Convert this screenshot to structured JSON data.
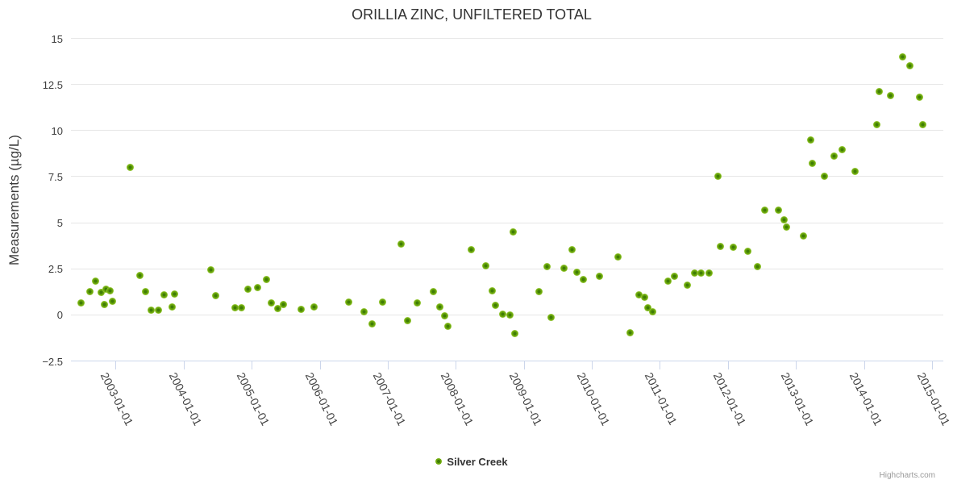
{
  "credits": {
    "label": "Highcharts.com"
  },
  "chart_data": {
    "type": "scatter",
    "title": "ORILLIA ZINC, UNFILTERED TOTAL",
    "xlabel": "",
    "ylabel": "Measurements (µg/L)",
    "grid": true,
    "legend_position": "bottom-center",
    "ylim": [
      -2.5,
      15
    ],
    "y_ticks": [
      {
        "value": -2.5,
        "label": "−2.5"
      },
      {
        "value": 0,
        "label": "0"
      },
      {
        "value": 2.5,
        "label": "2.5"
      },
      {
        "value": 5,
        "label": "5"
      },
      {
        "value": 7.5,
        "label": "7.5"
      },
      {
        "value": 10,
        "label": "10"
      },
      {
        "value": 12.5,
        "label": "12.5"
      },
      {
        "value": 15,
        "label": "15"
      }
    ],
    "x_ticks": [
      {
        "date": "2003-01-01",
        "label": "2003-01-01"
      },
      {
        "date": "2004-01-01",
        "label": "2004-01-01"
      },
      {
        "date": "2005-01-01",
        "label": "2005-01-01"
      },
      {
        "date": "2006-01-01",
        "label": "2006-01-01"
      },
      {
        "date": "2007-01-01",
        "label": "2007-01-01"
      },
      {
        "date": "2008-01-01",
        "label": "2008-01-01"
      },
      {
        "date": "2009-01-01",
        "label": "2009-01-01"
      },
      {
        "date": "2010-01-01",
        "label": "2010-01-01"
      },
      {
        "date": "2011-01-01",
        "label": "2011-01-01"
      },
      {
        "date": "2012-01-01",
        "label": "2012-01-01"
      },
      {
        "date": "2013-01-01",
        "label": "2013-01-01"
      },
      {
        "date": "2014-01-01",
        "label": "2014-01-01"
      },
      {
        "date": "2015-01-01",
        "label": "2015-01-01"
      }
    ],
    "series": [
      {
        "name": "Silver Creek",
        "color": "#5a9200",
        "points": [
          [
            "2002-07-01",
            0.65
          ],
          [
            "2002-08-15",
            1.25
          ],
          [
            "2002-09-15",
            1.85
          ],
          [
            "2002-10-15",
            1.2
          ],
          [
            "2002-11-01",
            0.55
          ],
          [
            "2002-11-10",
            1.4
          ],
          [
            "2002-12-01",
            1.3
          ],
          [
            "2002-12-15",
            0.75
          ],
          [
            "2003-03-20",
            8.0
          ],
          [
            "2003-05-10",
            2.15
          ],
          [
            "2003-06-10",
            1.25
          ],
          [
            "2003-07-10",
            0.25
          ],
          [
            "2003-08-20",
            0.25
          ],
          [
            "2003-09-20",
            1.1
          ],
          [
            "2003-11-01",
            0.45
          ],
          [
            "2003-11-15",
            1.15
          ],
          [
            "2004-05-25",
            2.45
          ],
          [
            "2004-06-20",
            1.05
          ],
          [
            "2004-10-01",
            0.4
          ],
          [
            "2004-11-05",
            0.4
          ],
          [
            "2004-12-10",
            1.4
          ],
          [
            "2005-02-01",
            1.5
          ],
          [
            "2005-03-20",
            1.9
          ],
          [
            "2005-04-15",
            0.65
          ],
          [
            "2005-05-20",
            0.35
          ],
          [
            "2005-06-20",
            0.55
          ],
          [
            "2005-09-25",
            0.3
          ],
          [
            "2005-11-30",
            0.45
          ],
          [
            "2006-06-07",
            0.7
          ],
          [
            "2006-08-28",
            0.15
          ],
          [
            "2006-10-10",
            -0.5
          ],
          [
            "2006-12-03",
            0.7
          ],
          [
            "2007-03-14",
            3.85
          ],
          [
            "2007-04-18",
            -0.3
          ],
          [
            "2007-06-10",
            0.65
          ],
          [
            "2007-09-03",
            1.25
          ],
          [
            "2007-10-06",
            0.45
          ],
          [
            "2007-11-01",
            -0.05
          ],
          [
            "2007-11-20",
            -0.6
          ],
          [
            "2008-03-24",
            3.55
          ],
          [
            "2008-06-10",
            2.65
          ],
          [
            "2008-07-13",
            1.3
          ],
          [
            "2008-08-03",
            0.5
          ],
          [
            "2008-09-08",
            0.05
          ],
          [
            "2008-10-20",
            0.0
          ],
          [
            "2008-11-03",
            4.5
          ],
          [
            "2008-11-14",
            -1.0
          ],
          [
            "2009-03-23",
            1.25
          ],
          [
            "2009-05-03",
            2.6
          ],
          [
            "2009-05-27",
            -0.15
          ],
          [
            "2009-08-05",
            2.55
          ],
          [
            "2009-09-17",
            3.55
          ],
          [
            "2009-10-13",
            2.3
          ],
          [
            "2009-11-16",
            1.9
          ],
          [
            "2010-02-11",
            2.1
          ],
          [
            "2010-05-20",
            3.15
          ],
          [
            "2010-07-26",
            -0.95
          ],
          [
            "2010-09-10",
            1.1
          ],
          [
            "2010-10-11",
            0.95
          ],
          [
            "2010-10-30",
            0.4
          ],
          [
            "2010-11-22",
            0.15
          ],
          [
            "2011-02-14",
            1.85
          ],
          [
            "2011-03-19",
            2.1
          ],
          [
            "2011-05-27",
            1.6
          ],
          [
            "2011-07-07",
            2.25
          ],
          [
            "2011-08-10",
            2.25
          ],
          [
            "2011-09-23",
            2.25
          ],
          [
            "2011-11-10",
            7.5
          ],
          [
            "2011-11-22",
            3.7
          ],
          [
            "2012-01-29",
            3.65
          ],
          [
            "2012-04-18",
            3.45
          ],
          [
            "2012-06-09",
            2.6
          ],
          [
            "2012-07-19",
            5.7
          ],
          [
            "2012-09-29",
            5.7
          ],
          [
            "2012-10-29",
            5.15
          ],
          [
            "2012-11-12",
            4.75
          ],
          [
            "2013-02-11",
            4.3
          ],
          [
            "2013-03-22",
            9.5
          ],
          [
            "2013-03-28",
            8.2
          ],
          [
            "2013-06-02",
            7.5
          ],
          [
            "2013-07-26",
            8.6
          ],
          [
            "2013-09-07",
            8.95
          ],
          [
            "2013-11-14",
            7.8
          ],
          [
            "2014-03-09",
            10.3
          ],
          [
            "2014-03-22",
            12.1
          ],
          [
            "2014-05-23",
            11.9
          ],
          [
            "2014-07-25",
            14.0
          ],
          [
            "2014-09-02",
            13.5
          ],
          [
            "2014-10-24",
            11.8
          ],
          [
            "2014-11-14",
            10.3
          ]
        ]
      }
    ]
  }
}
